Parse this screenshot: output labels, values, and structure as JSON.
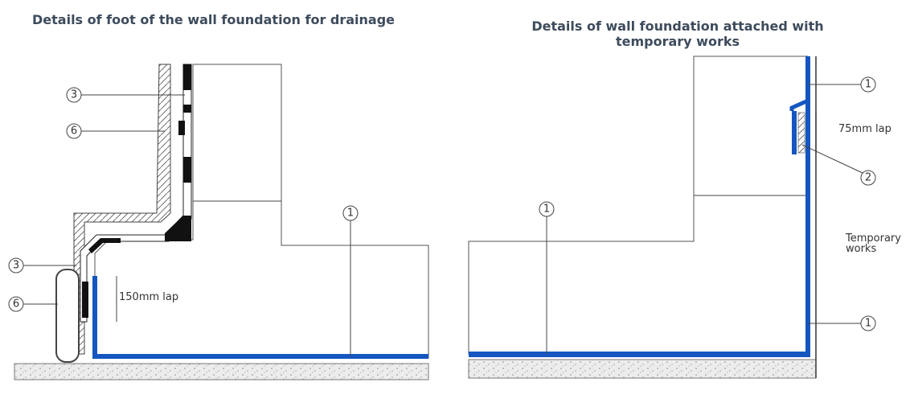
{
  "left": {
    "title": "Details of foot of the wall foundation for drainage",
    "callouts": [
      "3",
      "6",
      "3",
      "6",
      "1"
    ],
    "lap_label": "150mm lap"
  },
  "right": {
    "title_lines": [
      "Details of wall foundation attached with",
      "temporary works"
    ],
    "callouts": [
      "1",
      "2",
      "1",
      "1"
    ],
    "lap_label": "75mm lap",
    "temporary_label": [
      "Temporary",
      "works"
    ]
  }
}
